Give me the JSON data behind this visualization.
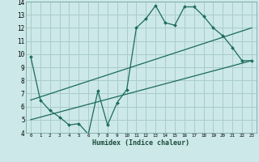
{
  "xlabel": "Humidex (Indice chaleur)",
  "ylabel": "",
  "bg_color": "#cce8e8",
  "grid_color": "#aacccc",
  "line_color": "#1a6b5a",
  "line1_x": [
    0,
    1,
    2,
    3,
    4,
    5,
    6,
    7,
    8,
    9,
    10,
    11,
    12,
    13,
    14,
    15,
    16,
    17,
    18,
    19,
    20,
    21,
    22,
    23
  ],
  "line1_y": [
    9.8,
    6.5,
    5.7,
    5.2,
    4.6,
    4.7,
    3.9,
    7.2,
    4.6,
    6.3,
    7.3,
    12.0,
    12.7,
    13.7,
    12.4,
    12.2,
    13.6,
    13.6,
    12.9,
    12.0,
    11.4,
    10.5,
    9.5,
    9.5
  ],
  "line2_x": [
    0,
    23
  ],
  "line2_y": [
    6.5,
    12.0
  ],
  "line3_x": [
    0,
    23
  ],
  "line3_y": [
    5.0,
    9.5
  ],
  "xlim": [
    -0.5,
    23.5
  ],
  "ylim": [
    4,
    14
  ],
  "xticks": [
    0,
    1,
    2,
    3,
    4,
    5,
    6,
    7,
    8,
    9,
    10,
    11,
    12,
    13,
    14,
    15,
    16,
    17,
    18,
    19,
    20,
    21,
    22,
    23
  ],
  "yticks": [
    4,
    5,
    6,
    7,
    8,
    9,
    10,
    11,
    12,
    13,
    14
  ]
}
